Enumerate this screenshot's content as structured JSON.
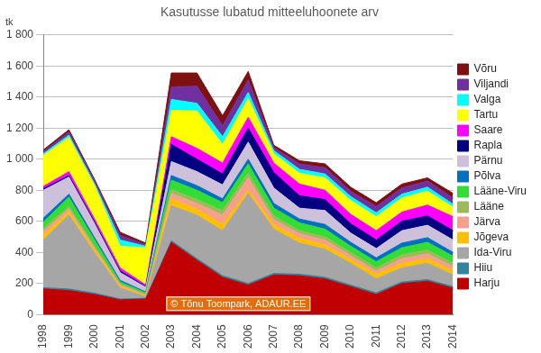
{
  "chart_data": {
    "type": "area",
    "title": "Kasutusse lubatud mitteeluhoonete arv",
    "ylabel": "tk",
    "annotations": [
      {
        "text": "© Tõnu Toompark, ADAUR.EE"
      }
    ],
    "categories": [
      "1998",
      "1999",
      "2000",
      "2001",
      "2002",
      "2003",
      "2004",
      "2005",
      "2006",
      "2007",
      "2008",
      "2009",
      "2010",
      "2011",
      "2012",
      "2013",
      "2014"
    ],
    "stacked": true,
    "grid": true,
    "legend": "right",
    "ylim": [
      0,
      1800
    ],
    "yticks": [
      0,
      200,
      400,
      600,
      800,
      {
        "value": 1000,
        "label": "1 000"
      },
      {
        "value": 1200,
        "label": "1 200"
      },
      {
        "value": 1400,
        "label": "1 400"
      },
      {
        "value": 1600,
        "label": "1 600"
      },
      {
        "value": 1800,
        "label": "1 800"
      }
    ],
    "series": [
      {
        "name": "Harju",
        "color": "#c00000",
        "values": [
          165,
          155,
          130,
          95,
          100,
          465,
          350,
          240,
          190,
          255,
          250,
          230,
          180,
          130,
          200,
          215,
          170
        ]
      },
      {
        "name": "Hiiu",
        "color": "#31859c",
        "values": [
          8,
          10,
          8,
          5,
          5,
          10,
          10,
          10,
          10,
          10,
          10,
          10,
          10,
          10,
          10,
          10,
          10
        ]
      },
      {
        "name": "Ida-Viru",
        "color": "#a6a6a6",
        "values": [
          307,
          475,
          260,
          70,
          10,
          225,
          280,
          290,
          580,
          285,
          200,
          180,
          140,
          90,
          90,
          105,
          75
        ]
      },
      {
        "name": "Jõgeva",
        "color": "#ffc000",
        "values": [
          30,
          20,
          15,
          10,
          5,
          45,
          40,
          40,
          20,
          30,
          30,
          30,
          25,
          30,
          30,
          30,
          25
        ]
      },
      {
        "name": "Järva",
        "color": "#f4a08c",
        "values": [
          25,
          20,
          15,
          10,
          5,
          35,
          35,
          60,
          80,
          30,
          30,
          30,
          25,
          20,
          30,
          30,
          30
        ]
      },
      {
        "name": "Lääne",
        "color": "#9bbb59",
        "values": [
          20,
          15,
          12,
          8,
          5,
          25,
          25,
          30,
          30,
          25,
          20,
          20,
          20,
          20,
          25,
          25,
          20
        ]
      },
      {
        "name": "Lääne-Viru",
        "color": "#33dd33",
        "values": [
          40,
          60,
          40,
          12,
          10,
          60,
          60,
          50,
          60,
          50,
          50,
          50,
          40,
          40,
          45,
          50,
          45
        ]
      },
      {
        "name": "Põlva",
        "color": "#0070c0",
        "values": [
          25,
          20,
          15,
          10,
          5,
          30,
          30,
          25,
          30,
          30,
          25,
          30,
          25,
          25,
          30,
          30,
          25
        ]
      },
      {
        "name": "Pärnu",
        "color": "#ccc0da",
        "values": [
          180,
          110,
          90,
          50,
          30,
          90,
          90,
          90,
          110,
          100,
          70,
          90,
          60,
          60,
          80,
          80,
          80
        ]
      },
      {
        "name": "Rapla",
        "color": "#000080",
        "values": [
          10,
          10,
          10,
          10,
          5,
          110,
          80,
          70,
          90,
          100,
          80,
          70,
          60,
          55,
          60,
          60,
          60
        ]
      },
      {
        "name": "Saare",
        "color": "#ff00ff",
        "values": [
          15,
          25,
          20,
          20,
          10,
          50,
          70,
          70,
          70,
          60,
          75,
          60,
          60,
          60,
          60,
          70,
          90
        ]
      },
      {
        "name": "Tartu",
        "color": "#ffff00",
        "values": [
          200,
          220,
          215,
          140,
          240,
          170,
          240,
          120,
          120,
          60,
          70,
          80,
          90,
          90,
          90,
          90,
          60
        ]
      },
      {
        "name": "Valga",
        "color": "#00ffff",
        "values": [
          10,
          15,
          12,
          40,
          10,
          70,
          50,
          50,
          40,
          20,
          25,
          25,
          25,
          25,
          25,
          25,
          20
        ]
      },
      {
        "name": "Viljandi",
        "color": "#7030a0",
        "values": [
          15,
          20,
          18,
          30,
          10,
          80,
          110,
          70,
          80,
          20,
          35,
          40,
          35,
          40,
          40,
          40,
          40
        ]
      },
      {
        "name": "Võru",
        "color": "#7f1010",
        "values": [
          10,
          15,
          10,
          20,
          10,
          90,
          85,
          65,
          55,
          15,
          20,
          25,
          25,
          25,
          25,
          20,
          30
        ]
      }
    ]
  }
}
